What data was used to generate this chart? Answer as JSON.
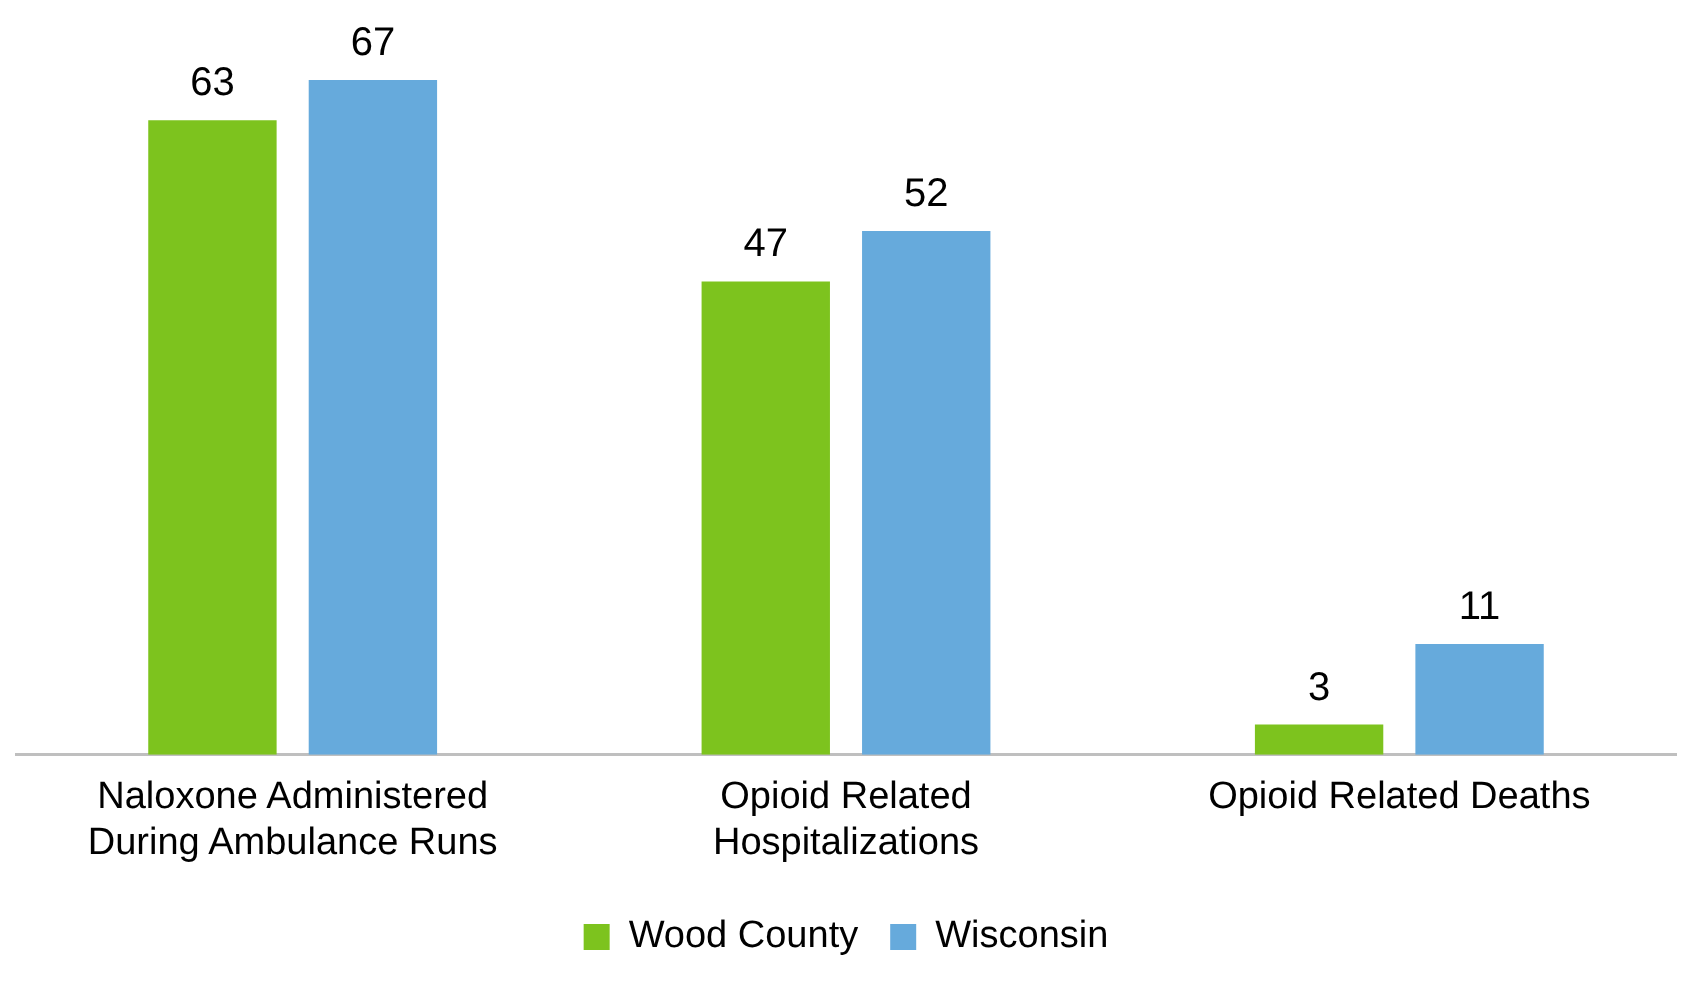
{
  "chart_data": {
    "type": "bar",
    "categories": [
      "Naloxone Administered During Ambulance Runs",
      "Opioid Related Hospitalizations",
      "Opioid Related Deaths"
    ],
    "series": [
      {
        "name": "Wood County",
        "color": "#7dc31e",
        "values": [
          63,
          47,
          3
        ]
      },
      {
        "name": "Wisconsin",
        "color": "#66aadc",
        "values": [
          67,
          52,
          11
        ]
      }
    ],
    "data_labels": true,
    "legend": "bottom",
    "grid": false
  }
}
